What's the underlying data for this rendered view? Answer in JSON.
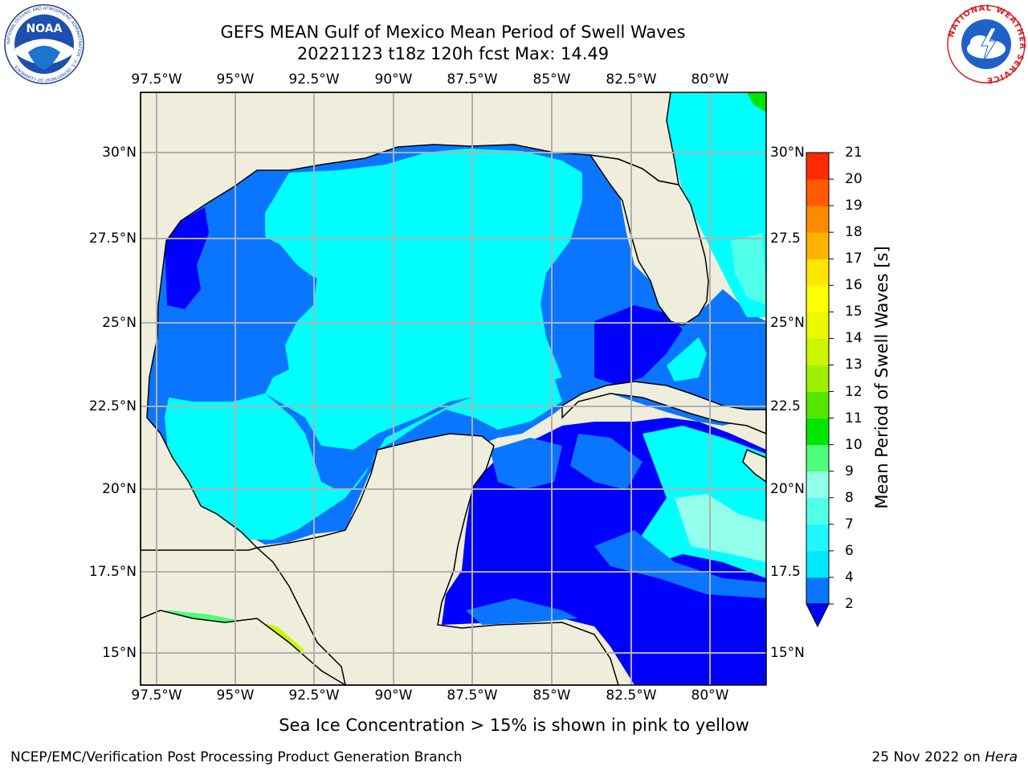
{
  "title": {
    "line1": "GEFS MEAN Gulf of Mexico Mean Period of Swell Waves",
    "line2": "20221123 t18z 120h fcst   Max: 14.49"
  },
  "logos": {
    "noaa_text": "NOAA",
    "noaa_ring": "NATIONAL OCEANIC AND ATMOSPHERIC ADMINISTRATION · U.S. DEPARTMENT OF COMMERCE",
    "nws_ring": "NATIONAL WEATHER SERVICE"
  },
  "map": {
    "lon_ticks": [
      "97.5°W",
      "95°W",
      "92.5°W",
      "90°W",
      "87.5°W",
      "85°W",
      "82.5°W",
      "80°W"
    ],
    "lat_ticks_left": [
      "30°N",
      "27.5°N",
      "25°N",
      "22.5°N",
      "20°N",
      "17.5°N",
      "15°N"
    ],
    "lat_ticks_right": [
      "30°N",
      "27.5",
      "25°N",
      "22.5",
      "20°N",
      "17.5",
      "15°N"
    ],
    "extent": {
      "lon": [
        -98,
        -78.2
      ],
      "lat": [
        14.0,
        31.8
      ]
    },
    "colors": {
      "land": "#efeddc",
      "grid": "#b0b0b0",
      "coast": "#000000"
    }
  },
  "colorbar": {
    "label": "Mean Period of Swell Waves [s]",
    "ticks": [
      "2",
      "4",
      "6",
      "7",
      "8",
      "9",
      "10",
      "11",
      "12",
      "13",
      "14",
      "15",
      "16",
      "17",
      "18",
      "19",
      "20",
      "21"
    ],
    "colors": [
      "#0a76ff",
      "#00e8ff",
      "#22f6ff",
      "#50ffe8",
      "#92ffea",
      "#4dff7a",
      "#00e600",
      "#55e600",
      "#9cf000",
      "#ccf500",
      "#eaf800",
      "#ffff00",
      "#ffe600",
      "#ffb300",
      "#ff8a00",
      "#ff5a00",
      "#ff2a00",
      "#ff0000"
    ],
    "under_color": "#0000ff"
  },
  "footer": {
    "note": "Sea Ice Concentration > 15% is shown in pink to yellow",
    "left": "NCEP/EMC/Verification Post Processing Product Generation Branch",
    "right_date": "25 Nov 2022 on",
    "right_host": "Hera"
  }
}
